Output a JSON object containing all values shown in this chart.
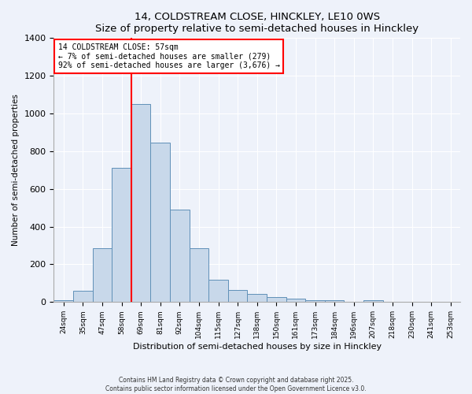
{
  "title": "14, COLDSTREAM CLOSE, HINCKLEY, LE10 0WS",
  "subtitle": "Size of property relative to semi-detached houses in Hinckley",
  "xlabel": "Distribution of semi-detached houses by size in Hinckley",
  "ylabel": "Number of semi-detached properties",
  "categories": [
    "24sqm",
    "35sqm",
    "47sqm",
    "58sqm",
    "69sqm",
    "81sqm",
    "92sqm",
    "104sqm",
    "115sqm",
    "127sqm",
    "138sqm",
    "150sqm",
    "161sqm",
    "173sqm",
    "184sqm",
    "196sqm",
    "207sqm",
    "218sqm",
    "230sqm",
    "241sqm",
    "253sqm"
  ],
  "values": [
    10,
    60,
    285,
    710,
    1050,
    845,
    490,
    285,
    120,
    65,
    43,
    28,
    18,
    10,
    8,
    3,
    10,
    0,
    0,
    0,
    0
  ],
  "bar_color": "#c8d8ea",
  "bar_edge_color": "#6090b8",
  "vline_color": "red",
  "annotation_line1": "14 COLDSTREAM CLOSE: 57sqm",
  "annotation_line2": "← 7% of semi-detached houses are smaller (279)",
  "annotation_line3": "92% of semi-detached houses are larger (3,676) →",
  "annotation_box_color": "white",
  "annotation_box_edge": "red",
  "ylim": [
    0,
    1400
  ],
  "yticks": [
    0,
    200,
    400,
    600,
    800,
    1000,
    1200,
    1400
  ],
  "bg_color": "#eef2fa",
  "grid_color": "white",
  "footer_line1": "Contains HM Land Registry data © Crown copyright and database right 2025.",
  "footer_line2": "Contains public sector information licensed under the Open Government Licence v3.0."
}
